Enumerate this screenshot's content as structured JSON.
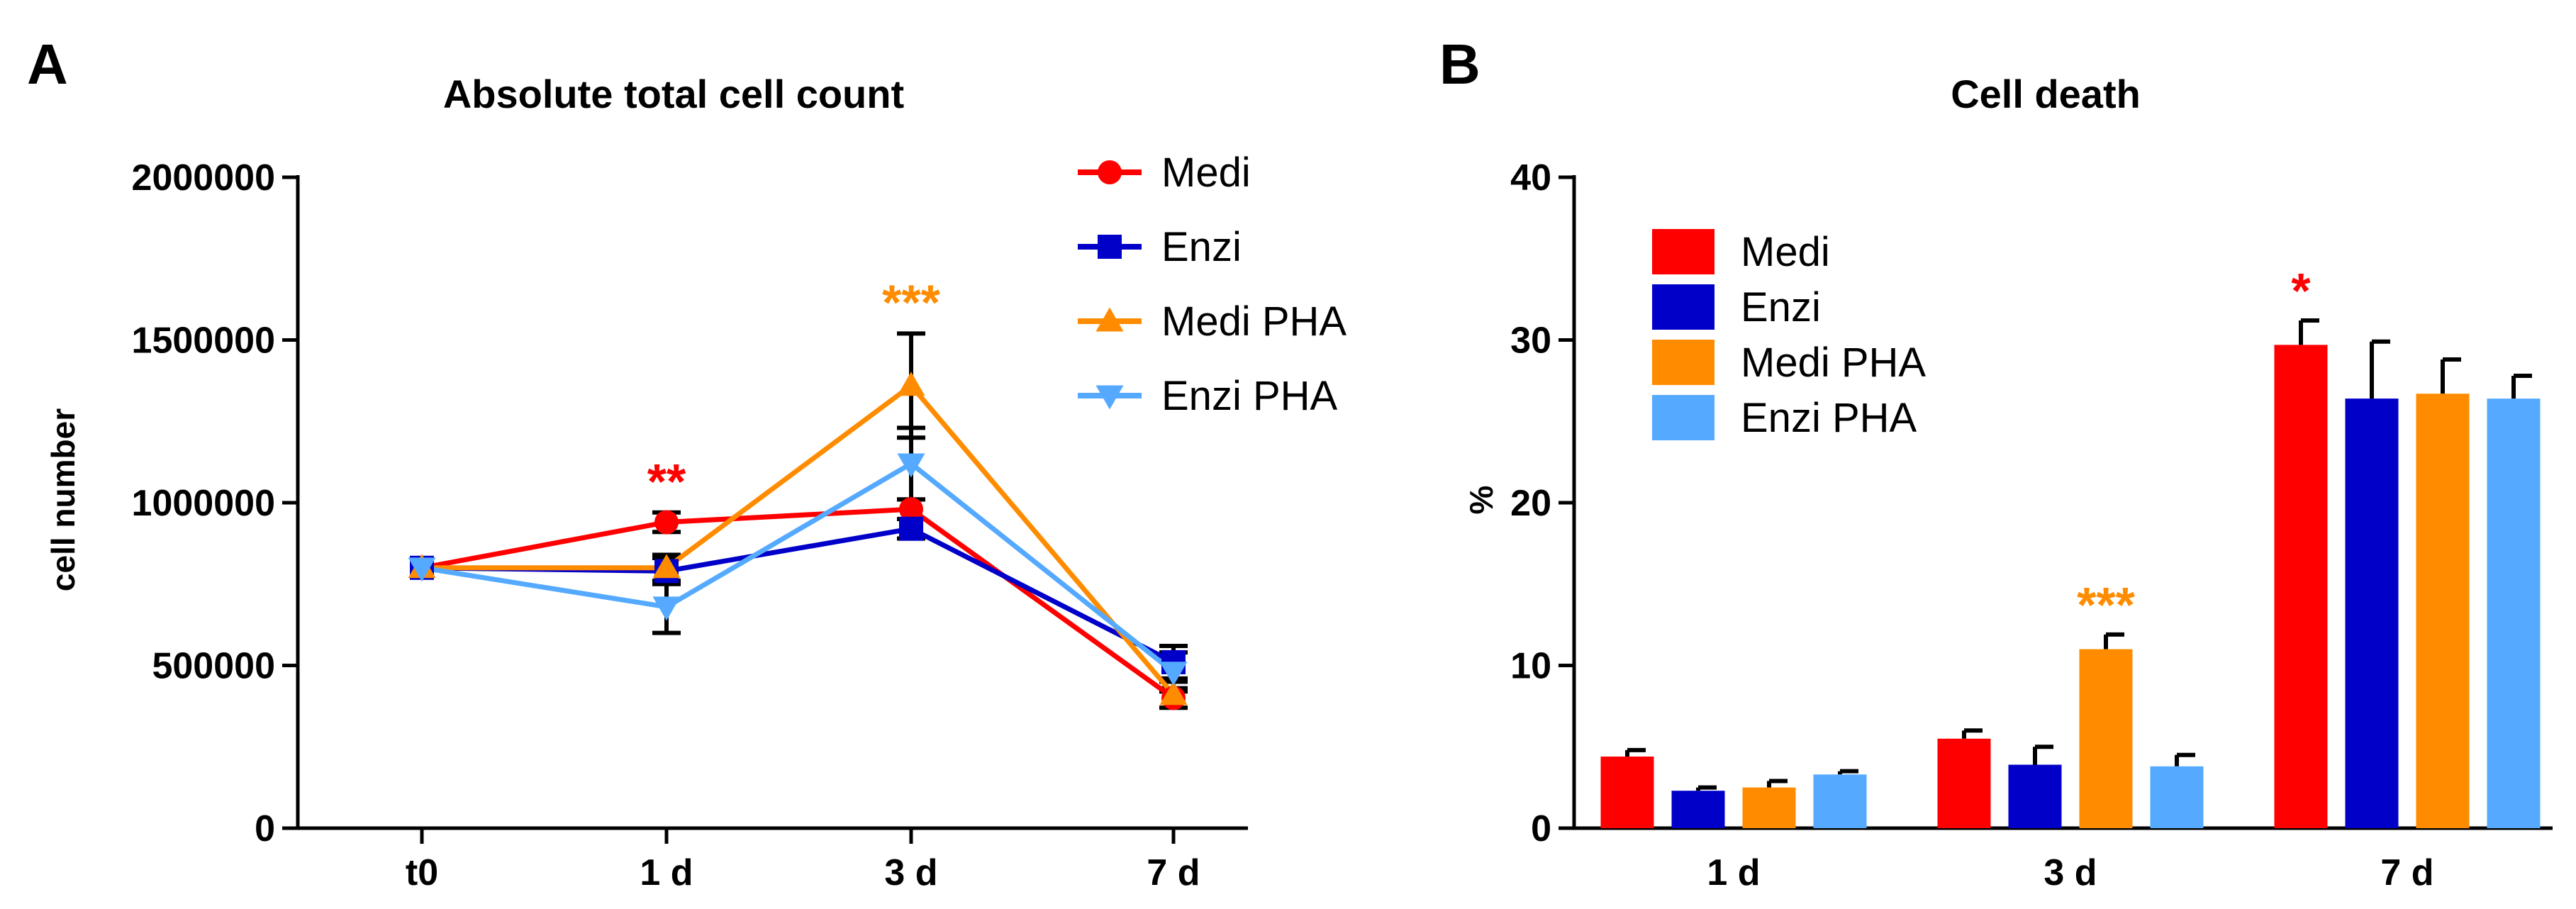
{
  "chart_data": [
    {
      "panel": "A",
      "type": "line",
      "title": "Absolute total cell count",
      "xlabel": "",
      "ylabel": "cell number",
      "categories": [
        "t0",
        "1 d",
        "3 d",
        "7 d"
      ],
      "ylim": [
        0,
        2000000
      ],
      "yticks": [
        0,
        500000,
        1000000,
        1500000,
        2000000
      ],
      "ytick_labels": [
        "0",
        "500000",
        "1000000",
        "1500000",
        "2000000"
      ],
      "legend_position": "top-right",
      "series": [
        {
          "name": "Medi",
          "color": "#ff0000",
          "marker": "circle",
          "values": [
            800000,
            940000,
            980000,
            400000
          ],
          "errors": [
            0,
            30000,
            30000,
            30000
          ]
        },
        {
          "name": "Enzi",
          "color": "#0000c8",
          "marker": "square",
          "values": [
            800000,
            790000,
            920000,
            510000
          ],
          "errors": [
            0,
            40000,
            30000,
            50000
          ]
        },
        {
          "name": "Medi PHA",
          "color": "#ff8c00",
          "marker": "triangle-up",
          "values": [
            800000,
            800000,
            1360000,
            410000
          ],
          "errors": [
            0,
            40000,
            160000,
            40000
          ]
        },
        {
          "name": "Enzi PHA",
          "color": "#55aaff",
          "marker": "triangle-down",
          "values": [
            800000,
            680000,
            1120000,
            480000
          ],
          "errors": [
            0,
            80000,
            110000,
            60000
          ]
        }
      ],
      "annotations": [
        {
          "text": "**",
          "category": "1 d",
          "color": "#ff0000"
        },
        {
          "text": "***",
          "category": "3 d",
          "color": "#ff8c00"
        }
      ]
    },
    {
      "panel": "B",
      "type": "bar",
      "title": "Cell death",
      "xlabel": "",
      "ylabel": "%",
      "categories": [
        "1 d",
        "3 d",
        "7 d"
      ],
      "ylim": [
        0,
        40
      ],
      "yticks": [
        0,
        10,
        20,
        30,
        40
      ],
      "ytick_labels": [
        "0",
        "10",
        "20",
        "30",
        "40"
      ],
      "legend_position": "top-left",
      "series": [
        {
          "name": "Medi",
          "color": "#ff0000",
          "values": [
            4.4,
            5.5,
            29.7
          ],
          "errors": [
            0.4,
            0.5,
            1.5
          ]
        },
        {
          "name": "Enzi",
          "color": "#0000c8",
          "values": [
            2.3,
            3.9,
            26.4
          ],
          "errors": [
            0.2,
            1.1,
            3.5
          ]
        },
        {
          "name": "Medi PHA",
          "color": "#ff8c00",
          "values": [
            2.5,
            11.0,
            26.7
          ],
          "errors": [
            0.4,
            0.9,
            2.1
          ]
        },
        {
          "name": "Enzi PHA",
          "color": "#55aaff",
          "values": [
            3.3,
            3.8,
            26.4
          ],
          "errors": [
            0.2,
            0.7,
            1.4
          ]
        }
      ],
      "annotations": [
        {
          "text": "***",
          "category": "3 d",
          "series": "Medi PHA",
          "color": "#ff8c00"
        },
        {
          "text": "*",
          "category": "7 d",
          "series": "Medi",
          "color": "#ff0000"
        }
      ]
    }
  ]
}
